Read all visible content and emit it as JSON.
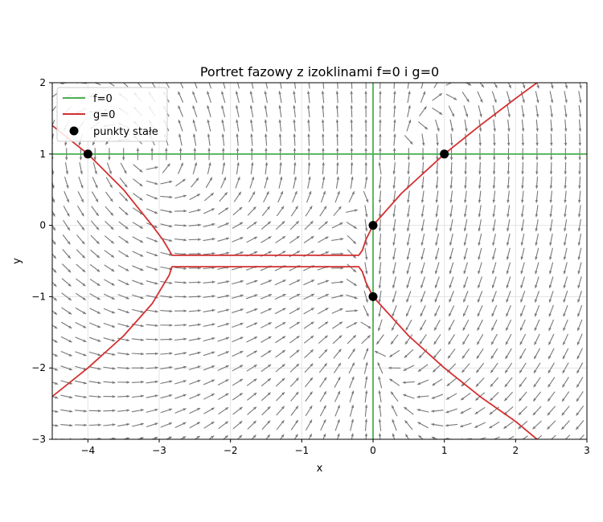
{
  "chart_data": {
    "type": "phase_portrait",
    "title": "Portret fazowy z izoklinami f=0 i g=0",
    "xlabel": "x",
    "ylabel": "y",
    "xlim": [
      -4.5,
      3
    ],
    "ylim": [
      -3,
      2
    ],
    "xticks": [
      -4,
      -3,
      -2,
      -1,
      0,
      1,
      2,
      3
    ],
    "xtick_labels": [
      "−4",
      "−3",
      "−2",
      "−1",
      "0",
      "1",
      "2",
      "3"
    ],
    "yticks": [
      -3,
      -2,
      -1,
      0,
      1,
      2
    ],
    "ytick_labels": [
      "−3",
      "−2",
      "−1",
      "0",
      "1",
      "2"
    ],
    "grid": true,
    "legend_position": "upper-left",
    "colors": {
      "f_nullcline": "#4caf50",
      "g_nullcline": "#d32f2f",
      "fixed_points": "#000000",
      "field_arrows": "#777777"
    },
    "legend": [
      {
        "label": "f=0",
        "kind": "line",
        "color": "#4caf50"
      },
      {
        "label": "g=0",
        "kind": "line",
        "color": "#d32f2f"
      },
      {
        "label": "punkty stałe",
        "kind": "marker",
        "color": "#000000"
      }
    ],
    "series": [
      {
        "name": "f=0",
        "color": "#4caf50",
        "segments": [
          [
            [
              -4.5,
              1
            ],
            [
              3,
              1
            ]
          ],
          [
            [
              0,
              -3
            ],
            [
              0,
              2
            ]
          ]
        ]
      },
      {
        "name": "g=0",
        "color": "#d32f2f",
        "segments": [
          [
            [
              -4.5,
              1.4
            ],
            [
              -4,
              1.0
            ],
            [
              -3.5,
              0.5
            ],
            [
              -3.1,
              0.0
            ],
            [
              -2.95,
              -0.2
            ],
            [
              -2.86,
              -0.35
            ],
            [
              -2.82,
              -0.42
            ],
            [
              -0.2,
              -0.42
            ],
            [
              -0.15,
              -0.35
            ],
            [
              -0.1,
              -0.2
            ],
            [
              0,
              0
            ],
            [
              0.4,
              0.45
            ],
            [
              1,
              1
            ],
            [
              1.5,
              1.4
            ],
            [
              2,
              1.78
            ],
            [
              2.3,
              2.0
            ]
          ],
          [
            [
              -4.5,
              -2.4
            ],
            [
              -4,
              -2.0
            ],
            [
              -3.5,
              -1.55
            ],
            [
              -3.1,
              -1.1
            ],
            [
              -2.95,
              -0.85
            ],
            [
              -2.86,
              -0.7
            ],
            [
              -2.82,
              -0.58
            ],
            [
              -0.2,
              -0.58
            ],
            [
              -0.15,
              -0.65
            ],
            [
              -0.1,
              -0.8
            ],
            [
              0,
              -1.0
            ],
            [
              0.5,
              -1.55
            ],
            [
              1,
              -2.0
            ],
            [
              1.5,
              -2.4
            ],
            [
              2,
              -2.75
            ],
            [
              2.3,
              -3.0
            ]
          ]
        ]
      }
    ],
    "fixed_points": {
      "name": "punkty stałe",
      "x": [
        -4,
        0,
        0,
        1
      ],
      "y": [
        1,
        0,
        -1,
        1
      ]
    },
    "vector_field": {
      "grid_x": [
        -4.5,
        3,
        0.2
      ],
      "grid_y": [
        -3,
        2,
        0.2
      ],
      "length": 0.17,
      "color": "#777777"
    }
  }
}
